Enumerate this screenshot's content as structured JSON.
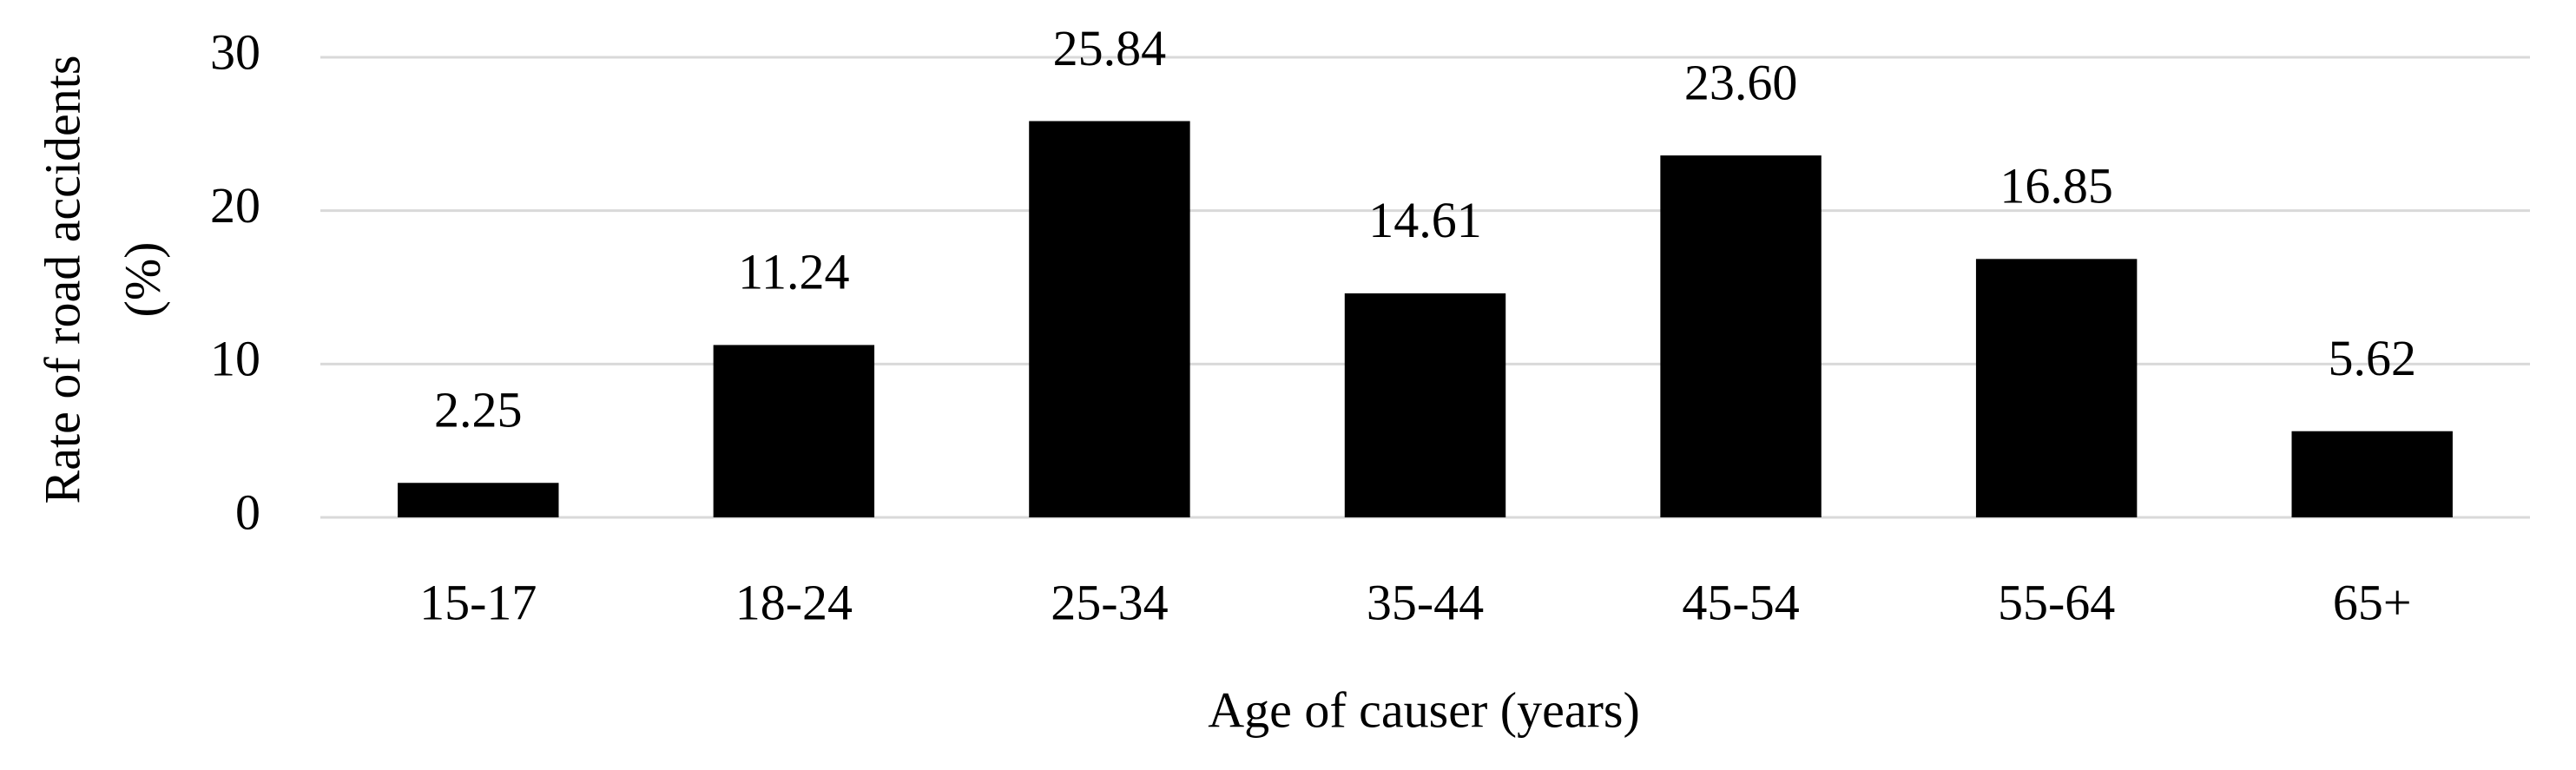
{
  "chart_data": {
    "type": "bar",
    "xlabel": "Age of causer (years)",
    "ylabel": [
      "Rate of road accidents",
      "(%)"
    ],
    "categories": [
      "15-17",
      "18-24",
      "25-34",
      "35-44",
      "45-54",
      "55-64",
      "65+"
    ],
    "values": [
      2.25,
      11.24,
      25.84,
      14.61,
      23.6,
      16.85,
      5.62
    ],
    "value_labels": [
      "2.25",
      "11.24",
      "25.84",
      "14.61",
      "23.60",
      "16.85",
      "5.62"
    ],
    "color": "#000000",
    "ylim": [
      0,
      30
    ],
    "yticks": [
      0,
      10,
      20,
      30
    ],
    "grid": true
  }
}
